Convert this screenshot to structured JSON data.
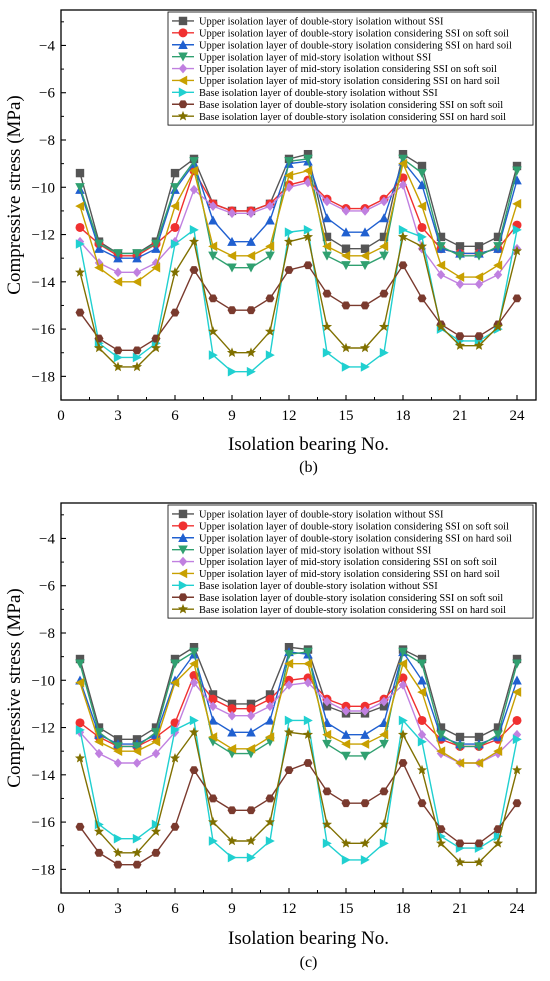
{
  "chart_data": [
    {
      "type": "line",
      "caption": "(b)",
      "xlabel": "Isolation bearing No.",
      "ylabel": "Compressive stress (MPa)",
      "xlim": [
        0,
        25
      ],
      "ylim": [
        -19,
        -2.5
      ],
      "xticks": [
        0,
        3,
        6,
        9,
        12,
        15,
        18,
        21,
        24
      ],
      "yticks": [
        -18,
        -16,
        -14,
        -12,
        -10,
        -8,
        -6,
        -4
      ],
      "grid": false,
      "legend_position": "top-right",
      "x": [
        1,
        2,
        3,
        4,
        5,
        6,
        7,
        8,
        9,
        10,
        11,
        12,
        13,
        14,
        15,
        16,
        17,
        18,
        19,
        20,
        21,
        22,
        23,
        24
      ],
      "series": [
        {
          "name": "Upper isolation layer of double-story isolation without SSI",
          "color": "#555555",
          "marker": "square",
          "values": [
            -9.4,
            -12.3,
            -12.8,
            -12.8,
            -12.3,
            -9.4,
            -8.8,
            -10.7,
            -11.0,
            -11.0,
            -10.7,
            -8.8,
            -8.6,
            -12.1,
            -12.6,
            -12.6,
            -12.1,
            -8.6,
            -9.1,
            -12.1,
            -12.5,
            -12.5,
            -12.1,
            -9.1
          ]
        },
        {
          "name": "Upper isolation layer of double-story isolation considering SSI on soft soil",
          "color": "#f03030",
          "marker": "circle",
          "values": [
            -11.7,
            -12.4,
            -12.9,
            -12.9,
            -12.4,
            -11.7,
            -9.3,
            -10.7,
            -11.0,
            -11.0,
            -10.7,
            -9.9,
            -9.7,
            -10.5,
            -10.9,
            -10.9,
            -10.5,
            -9.6,
            -11.7,
            -12.6,
            -12.8,
            -12.8,
            -12.6,
            -11.6
          ]
        },
        {
          "name": "Upper isolation layer of double-story isolation considering SSI on hard soil",
          "color": "#2060d0",
          "marker": "triangle-up",
          "values": [
            -10.1,
            -12.6,
            -13.0,
            -13.0,
            -12.6,
            -10.1,
            -9.0,
            -11.4,
            -12.3,
            -12.3,
            -11.4,
            -9.0,
            -8.9,
            -11.3,
            -11.9,
            -11.9,
            -11.3,
            -8.9,
            -9.9,
            -12.6,
            -12.8,
            -12.8,
            -12.6,
            -9.7
          ]
        },
        {
          "name": "Upper isolation layer of mid-story isolation without SSI",
          "color": "#30a070",
          "marker": "triangle-down",
          "values": [
            -10.0,
            -12.4,
            -12.8,
            -12.8,
            -12.4,
            -10.0,
            -8.9,
            -12.9,
            -13.4,
            -13.4,
            -12.9,
            -8.9,
            -8.8,
            -12.9,
            -13.3,
            -13.3,
            -12.9,
            -8.8,
            -9.4,
            -12.5,
            -12.9,
            -12.9,
            -12.5,
            -9.3
          ]
        },
        {
          "name": "Upper isolation layer of mid-story isolation considering SSI on soft soil",
          "color": "#c080e0",
          "marker": "diamond",
          "values": [
            -12.3,
            -13.2,
            -13.6,
            -13.6,
            -13.2,
            -12.3,
            -10.1,
            -10.8,
            -11.1,
            -11.1,
            -10.8,
            -10.0,
            -9.8,
            -10.6,
            -11.0,
            -11.0,
            -10.6,
            -9.9,
            -12.6,
            -13.7,
            -14.1,
            -14.1,
            -13.7,
            -12.6
          ]
        },
        {
          "name": "Upper isolation layer of mid-story isolation considering SSI on hard soil",
          "color": "#c8a000",
          "marker": "triangle-left",
          "values": [
            -10.8,
            -13.4,
            -14.0,
            -14.0,
            -13.4,
            -10.8,
            -9.3,
            -12.5,
            -12.9,
            -12.9,
            -12.5,
            -9.5,
            -9.3,
            -12.5,
            -12.9,
            -12.9,
            -12.5,
            -9.0,
            -10.8,
            -13.3,
            -13.8,
            -13.8,
            -13.3,
            -10.7
          ]
        },
        {
          "name": "Base isolation layer of  double-story isolation without SSI",
          "color": "#20d0d0",
          "marker": "triangle-right",
          "values": [
            -12.4,
            -16.6,
            -17.2,
            -17.2,
            -16.6,
            -12.4,
            -11.8,
            -17.1,
            -17.8,
            -17.8,
            -17.1,
            -11.9,
            -11.8,
            -17.0,
            -17.6,
            -17.6,
            -17.0,
            -11.8,
            -12.1,
            -16.0,
            -16.5,
            -16.5,
            -16.0,
            -11.8
          ]
        },
        {
          "name": "Base isolation layer of double-story isolation considering SSI on soft soil",
          "color": "#7a3a2e",
          "marker": "hexagon",
          "values": [
            -15.3,
            -16.4,
            -16.9,
            -16.9,
            -16.4,
            -15.3,
            -13.5,
            -14.7,
            -15.2,
            -15.2,
            -14.7,
            -13.5,
            -13.3,
            -14.5,
            -15.0,
            -15.0,
            -14.5,
            -13.3,
            -14.7,
            -15.8,
            -16.3,
            -16.3,
            -15.8,
            -14.7
          ]
        },
        {
          "name": "Base isolation layer of double-story isolation considering SSI on hard soil",
          "color": "#807000",
          "marker": "star",
          "values": [
            -13.6,
            -16.8,
            -17.6,
            -17.6,
            -16.8,
            -13.6,
            -12.3,
            -16.1,
            -17.0,
            -17.0,
            -16.1,
            -12.3,
            -12.1,
            -15.9,
            -16.8,
            -16.8,
            -15.9,
            -12.1,
            -12.5,
            -15.9,
            -16.7,
            -16.7,
            -15.9,
            -12.7
          ]
        }
      ]
    },
    {
      "type": "line",
      "caption": "(c)",
      "xlabel": "Isolation bearing No.",
      "ylabel": "Compressive stress (MPa)",
      "xlim": [
        0,
        25
      ],
      "ylim": [
        -19,
        -2.5
      ],
      "xticks": [
        0,
        3,
        6,
        9,
        12,
        15,
        18,
        21,
        24
      ],
      "yticks": [
        -18,
        -16,
        -14,
        -12,
        -10,
        -8,
        -6,
        -4
      ],
      "grid": false,
      "legend_position": "top-right",
      "x": [
        1,
        2,
        3,
        4,
        5,
        6,
        7,
        8,
        9,
        10,
        11,
        12,
        13,
        14,
        15,
        16,
        17,
        18,
        19,
        20,
        21,
        22,
        23,
        24
      ],
      "series": [
        {
          "name": "Upper isolation layer of double-story isolation without SSI",
          "color": "#555555",
          "marker": "square",
          "values": [
            -9.1,
            -12.0,
            -12.5,
            -12.5,
            -12.0,
            -9.1,
            -8.6,
            -10.6,
            -11.0,
            -11.0,
            -10.6,
            -8.6,
            -8.7,
            -11.1,
            -11.4,
            -11.4,
            -11.1,
            -8.7,
            -9.1,
            -12.0,
            -12.4,
            -12.4,
            -12.0,
            -9.1
          ]
        },
        {
          "name": "Upper isolation layer of double-story isolation considering SSI on soft soil",
          "color": "#f03030",
          "marker": "circle",
          "values": [
            -11.8,
            -12.4,
            -12.8,
            -12.8,
            -12.4,
            -11.8,
            -9.8,
            -10.8,
            -11.2,
            -11.2,
            -10.8,
            -10.0,
            -9.9,
            -10.8,
            -11.1,
            -11.1,
            -10.8,
            -9.9,
            -11.7,
            -12.5,
            -12.8,
            -12.8,
            -12.5,
            -11.7
          ]
        },
        {
          "name": "Upper isolation layer of double-story isolation considering SSI on hard soil",
          "color": "#2060d0",
          "marker": "triangle-up",
          "values": [
            -10.0,
            -12.3,
            -12.7,
            -12.7,
            -12.3,
            -10.0,
            -8.9,
            -11.7,
            -12.2,
            -12.2,
            -11.7,
            -8.8,
            -8.9,
            -11.8,
            -12.3,
            -12.3,
            -11.8,
            -8.8,
            -10.0,
            -12.4,
            -12.7,
            -12.7,
            -12.4,
            -10.0
          ]
        },
        {
          "name": "Upper isolation layer of mid-story isolation without SSI",
          "color": "#30a070",
          "marker": "triangle-down",
          "values": [
            -9.3,
            -12.2,
            -12.8,
            -12.8,
            -12.2,
            -9.3,
            -8.8,
            -12.6,
            -13.1,
            -13.1,
            -12.6,
            -8.9,
            -8.8,
            -12.7,
            -13.2,
            -13.2,
            -12.7,
            -8.8,
            -9.3,
            -12.3,
            -12.8,
            -12.8,
            -12.3,
            -9.3
          ]
        },
        {
          "name": "Upper isolation layer of mid-story isolation considering SSI on soft soil",
          "color": "#c080e0",
          "marker": "diamond",
          "values": [
            -12.2,
            -13.1,
            -13.5,
            -13.5,
            -13.1,
            -12.2,
            -10.1,
            -11.1,
            -11.5,
            -11.5,
            -11.1,
            -10.2,
            -10.1,
            -10.9,
            -11.3,
            -11.3,
            -10.9,
            -10.2,
            -12.3,
            -13.1,
            -13.5,
            -13.5,
            -13.1,
            -12.3
          ]
        },
        {
          "name": "Upper isolation layer of mid-story isolation considering SSI on hard soil",
          "color": "#c8a000",
          "marker": "triangle-left",
          "values": [
            -10.1,
            -12.6,
            -13.0,
            -13.0,
            -12.6,
            -10.1,
            -9.3,
            -12.4,
            -12.9,
            -12.9,
            -12.4,
            -9.3,
            -9.3,
            -12.3,
            -12.7,
            -12.7,
            -12.3,
            -9.3,
            -10.5,
            -13.0,
            -13.5,
            -13.5,
            -13.0,
            -10.5
          ]
        },
        {
          "name": "Base isolation layer of  double-story isolation without SSI",
          "color": "#20d0d0",
          "marker": "triangle-right",
          "values": [
            -12.1,
            -16.1,
            -16.7,
            -16.7,
            -16.1,
            -12.1,
            -11.7,
            -16.8,
            -17.5,
            -17.5,
            -16.8,
            -11.7,
            -11.7,
            -16.9,
            -17.6,
            -17.6,
            -16.9,
            -11.7,
            -12.6,
            -16.6,
            -17.1,
            -17.1,
            -16.6,
            -12.5
          ]
        },
        {
          "name": "Base isolation layer of double-story isolation considering SSI on soft soil",
          "color": "#7a3a2e",
          "marker": "hexagon",
          "values": [
            -16.2,
            -17.3,
            -17.8,
            -17.8,
            -17.3,
            -16.2,
            -13.8,
            -15.0,
            -15.5,
            -15.5,
            -15.0,
            -13.8,
            -13.5,
            -14.7,
            -15.2,
            -15.2,
            -14.7,
            -13.5,
            -15.2,
            -16.3,
            -16.9,
            -16.9,
            -16.3,
            -15.2
          ]
        },
        {
          "name": "Base isolation layer of double-story isolation considering SSI on hard soil",
          "color": "#807000",
          "marker": "star",
          "values": [
            -13.3,
            -16.4,
            -17.3,
            -17.3,
            -16.4,
            -13.3,
            -12.2,
            -16.0,
            -16.8,
            -16.8,
            -16.0,
            -12.2,
            -12.3,
            -16.1,
            -16.9,
            -16.9,
            -16.1,
            -12.3,
            -13.8,
            -16.9,
            -17.7,
            -17.7,
            -16.9,
            -13.8
          ]
        }
      ]
    }
  ]
}
